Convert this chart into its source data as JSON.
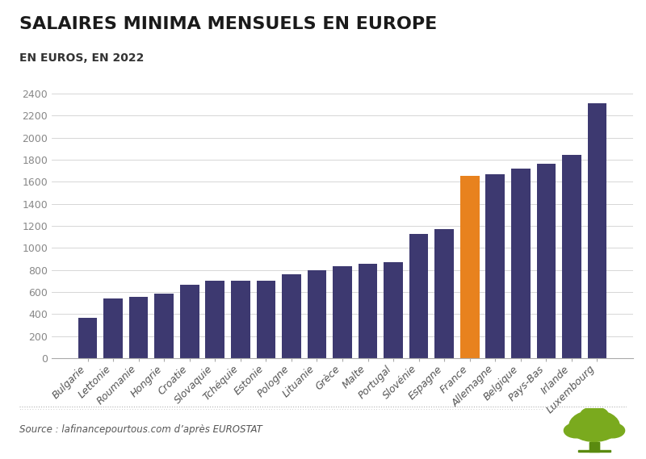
{
  "title": "SALAIRES MINIMA MENSUELS EN EUROPE",
  "subtitle": "EN EUROS, EN 2022",
  "source": "Source : lafinancepourtous.com d’après EUROSTAT",
  "categories": [
    "Bulgarie",
    "Lettonie",
    "Roumanie",
    "Hongrie",
    "Croatie",
    "Slovaquie",
    "Tchéquie",
    "Estonie",
    "Pologne",
    "Lituanie",
    "Grèce",
    "Malte",
    "Portugal",
    "Slovénie",
    "Espagne",
    "France",
    "Allemagne",
    "Belgique",
    "Pays-Bas",
    "Irlande",
    "Luxembourg"
  ],
  "values": [
    363,
    540,
    558,
    582,
    665,
    700,
    700,
    700,
    760,
    800,
    831,
    853,
    870,
    1130,
    1167,
    1654,
    1670,
    1720,
    1767,
    1843,
    2313
  ],
  "bar_colors": [
    "#3d3970",
    "#3d3970",
    "#3d3970",
    "#3d3970",
    "#3d3970",
    "#3d3970",
    "#3d3970",
    "#3d3970",
    "#3d3970",
    "#3d3970",
    "#3d3970",
    "#3d3970",
    "#3d3970",
    "#3d3970",
    "#3d3970",
    "#e8821e",
    "#3d3970",
    "#3d3970",
    "#3d3970",
    "#3d3970",
    "#3d3970"
  ],
  "ylim": [
    0,
    2500
  ],
  "yticks": [
    0,
    200,
    400,
    600,
    800,
    1000,
    1200,
    1400,
    1600,
    1800,
    2000,
    2200,
    2400
  ],
  "background_color": "#ffffff",
  "title_fontsize": 16,
  "subtitle_fontsize": 10,
  "tick_fontsize": 9,
  "grid_color": "#d0d0d0",
  "title_color": "#1a1a1a",
  "subtitle_color": "#333333",
  "source_color": "#555555",
  "bar_purple": "#3d3970",
  "bar_orange": "#e8821e",
  "tree_color": "#7aaa1e"
}
